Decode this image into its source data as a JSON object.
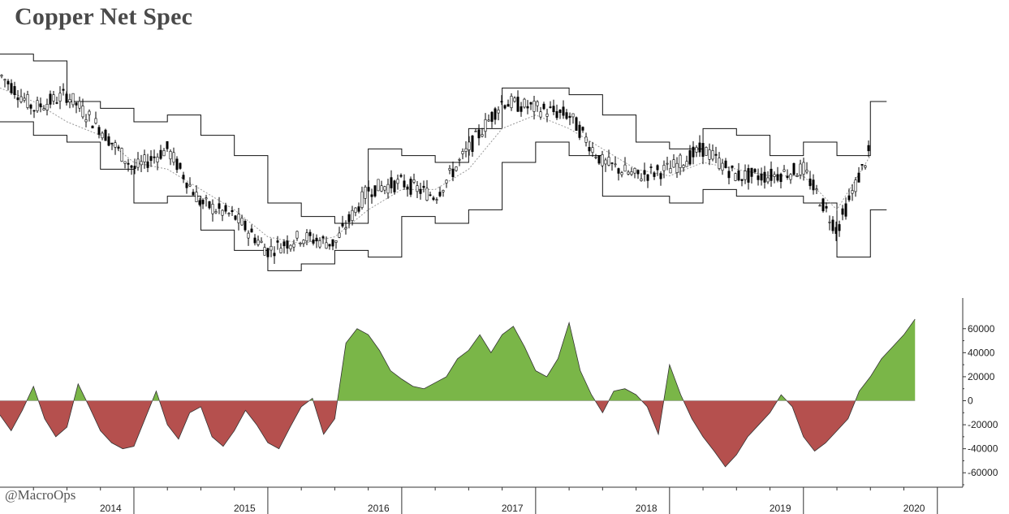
{
  "title": "Copper Net Spec",
  "watermark": "@MacroOps",
  "colors": {
    "positive_fill": "#7ab648",
    "negative_fill": "#b5504e",
    "outline": "#333333",
    "band": "#111111",
    "midline": "#9a9a9a"
  },
  "chart_data": [
    {
      "type": "line",
      "subtype": "candlestick-with-bands",
      "description_of_series": [
        "price candles",
        "upper band",
        "lower band",
        "moving average"
      ],
      "x": [
        "2014-01",
        "2014-04",
        "2014-07",
        "2014-10",
        "2015-01",
        "2015-04",
        "2015-07",
        "2015-10",
        "2016-01",
        "2016-04",
        "2016-07",
        "2016-10",
        "2017-01",
        "2017-04",
        "2017-07",
        "2017-10",
        "2018-01",
        "2018-04",
        "2018-07",
        "2018-10",
        "2019-01",
        "2019-04",
        "2019-07",
        "2019-10",
        "2020-01",
        "2020-04",
        "2020-07"
      ],
      "series": [
        {
          "values": [
            3.4,
            3.15,
            3.25,
            3.0,
            2.7,
            2.85,
            2.45,
            2.35,
            2.1,
            2.2,
            2.15,
            2.55,
            2.6,
            2.5,
            2.85,
            3.2,
            3.15,
            3.1,
            2.75,
            2.65,
            2.7,
            2.85,
            2.65,
            2.65,
            2.7,
            2.25,
            2.85
          ]
        },
        {
          "values": [
            3.55,
            3.5,
            3.2,
            3.15,
            3.05,
            3.1,
            2.95,
            2.8,
            2.45,
            2.35,
            2.3,
            2.85,
            2.8,
            2.75,
            3.0,
            3.3,
            3.3,
            3.25,
            3.1,
            2.9,
            2.85,
            3.0,
            2.95,
            2.8,
            2.9,
            2.8,
            3.2
          ]
        },
        {
          "values": [
            3.05,
            2.95,
            2.9,
            2.7,
            2.45,
            2.5,
            2.25,
            2.1,
            1.95,
            2.0,
            2.1,
            2.05,
            2.35,
            2.3,
            2.4,
            2.75,
            2.9,
            2.8,
            2.5,
            2.5,
            2.45,
            2.55,
            2.5,
            2.5,
            2.45,
            2.05,
            2.4
          ]
        },
        {
          "values": [
            3.3,
            3.2,
            3.05,
            2.95,
            2.75,
            2.7,
            2.55,
            2.4,
            2.2,
            2.15,
            2.2,
            2.4,
            2.55,
            2.55,
            2.7,
            3.0,
            3.1,
            3.0,
            2.85,
            2.7,
            2.65,
            2.75,
            2.7,
            2.65,
            2.65,
            2.4,
            2.8
          ]
        }
      ]
    },
    {
      "type": "area",
      "x": [
        "2014-01",
        "2014-02",
        "2014-03",
        "2014-04",
        "2014-05",
        "2014-06",
        "2014-07",
        "2014-08",
        "2014-09",
        "2014-10",
        "2014-11",
        "2014-12",
        "2015-01",
        "2015-02",
        "2015-03",
        "2015-04",
        "2015-05",
        "2015-06",
        "2015-07",
        "2015-08",
        "2015-09",
        "2015-10",
        "2015-11",
        "2015-12",
        "2016-01",
        "2016-02",
        "2016-03",
        "2016-04",
        "2016-05",
        "2016-06",
        "2016-07",
        "2016-08",
        "2016-09",
        "2016-10",
        "2016-11",
        "2016-12",
        "2017-01",
        "2017-02",
        "2017-03",
        "2017-04",
        "2017-05",
        "2017-06",
        "2017-07",
        "2017-08",
        "2017-09",
        "2017-10",
        "2017-11",
        "2017-12",
        "2018-01",
        "2018-02",
        "2018-03",
        "2018-04",
        "2018-05",
        "2018-06",
        "2018-07",
        "2018-08",
        "2018-09",
        "2018-10",
        "2018-11",
        "2018-12",
        "2019-01",
        "2019-02",
        "2019-03",
        "2019-04",
        "2019-05",
        "2019-06",
        "2019-07",
        "2019-08",
        "2019-09",
        "2019-10",
        "2019-11",
        "2019-12",
        "2020-01",
        "2020-02",
        "2020-03",
        "2020-04",
        "2020-05",
        "2020-06",
        "2020-07",
        "2020-08",
        "2020-09",
        "2020-10",
        "2020-11"
      ],
      "series": [
        {
          "values": [
            -12000,
            -25000,
            -8000,
            12000,
            -15000,
            -30000,
            -22000,
            14000,
            -5000,
            -25000,
            -35000,
            -40000,
            -38000,
            -15000,
            8000,
            -20000,
            -32000,
            -10000,
            -5000,
            -30000,
            -38000,
            -25000,
            -8000,
            -20000,
            -35000,
            -40000,
            -22000,
            -5000,
            2000,
            -28000,
            -15000,
            48000,
            60000,
            55000,
            42000,
            25000,
            18000,
            12000,
            10000,
            15000,
            20000,
            35000,
            42000,
            55000,
            40000,
            55000,
            62000,
            45000,
            25000,
            20000,
            35000,
            65000,
            25000,
            5000,
            -10000,
            8000,
            10000,
            5000,
            -5000,
            -28000,
            30000,
            5000,
            -15000,
            -30000,
            -42000,
            -55000,
            -45000,
            -30000,
            -20000,
            -10000,
            5000,
            -5000,
            -30000,
            -42000,
            -35000,
            -25000,
            -15000,
            8000,
            20000,
            35000,
            45000,
            55000,
            68000
          ]
        }
      ],
      "ylim": [
        -70000,
        70000
      ],
      "y_ticks": [
        "60000",
        "40000",
        "20000",
        "0",
        "-20000",
        "-40000",
        "-60000"
      ],
      "y_tick_values": [
        60000,
        40000,
        20000,
        0,
        -20000,
        -40000,
        -60000
      ]
    }
  ],
  "x_axis": {
    "years": [
      "2014",
      "2015",
      "2016",
      "2017",
      "2018",
      "2019",
      "2020"
    ]
  }
}
